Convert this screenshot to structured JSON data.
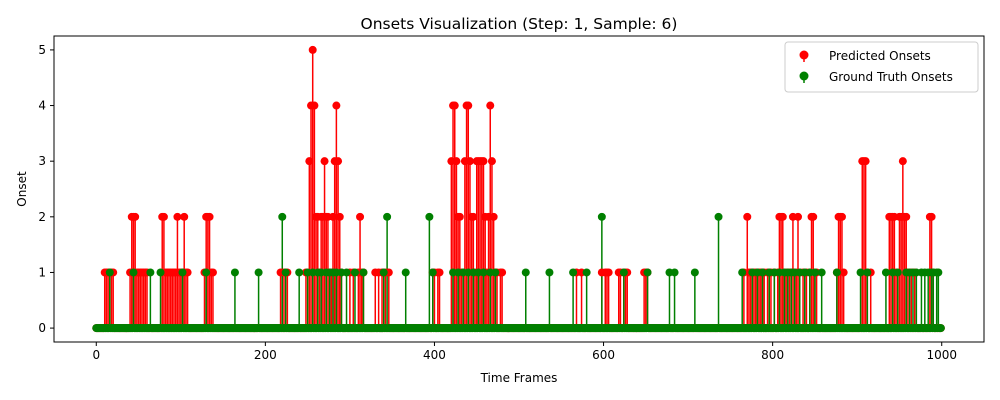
{
  "chart_data": {
    "type": "stem",
    "title": "Onsets Visualization (Step: 1, Sample: 6)",
    "xlabel": "Time Frames",
    "ylabel": "Onset",
    "xlim": [
      -50,
      1050
    ],
    "ylim": [
      -0.25,
      5.25
    ],
    "xticks": [
      0,
      200,
      400,
      600,
      800,
      1000
    ],
    "yticks": [
      0,
      1,
      2,
      3,
      4,
      5
    ],
    "legend_position": "top-right",
    "length": 1000,
    "series": [
      {
        "name": "Predicted Onsets",
        "color": "#ff0000",
        "points": [
          [
            10,
            1
          ],
          [
            12,
            1
          ],
          [
            14,
            1
          ],
          [
            16,
            1
          ],
          [
            18,
            1
          ],
          [
            20,
            1
          ],
          [
            40,
            1
          ],
          [
            42,
            2
          ],
          [
            44,
            2
          ],
          [
            46,
            2
          ],
          [
            48,
            1
          ],
          [
            50,
            1
          ],
          [
            52,
            1
          ],
          [
            54,
            1
          ],
          [
            56,
            1
          ],
          [
            58,
            1
          ],
          [
            60,
            1
          ],
          [
            78,
            2
          ],
          [
            80,
            2
          ],
          [
            82,
            1
          ],
          [
            84,
            1
          ],
          [
            86,
            1
          ],
          [
            88,
            1
          ],
          [
            90,
            1
          ],
          [
            92,
            1
          ],
          [
            94,
            1
          ],
          [
            96,
            2
          ],
          [
            98,
            1
          ],
          [
            100,
            1
          ],
          [
            102,
            1
          ],
          [
            104,
            2
          ],
          [
            106,
            1
          ],
          [
            108,
            1
          ],
          [
            128,
            1
          ],
          [
            130,
            2
          ],
          [
            132,
            2
          ],
          [
            134,
            2
          ],
          [
            136,
            1
          ],
          [
            138,
            1
          ],
          [
            218,
            1
          ],
          [
            222,
            1
          ],
          [
            226,
            1
          ],
          [
            248,
            1
          ],
          [
            252,
            3
          ],
          [
            254,
            4
          ],
          [
            256,
            5
          ],
          [
            258,
            4
          ],
          [
            260,
            2
          ],
          [
            262,
            2
          ],
          [
            264,
            1
          ],
          [
            266,
            2
          ],
          [
            268,
            2
          ],
          [
            270,
            3
          ],
          [
            272,
            2
          ],
          [
            274,
            2
          ],
          [
            276,
            1
          ],
          [
            278,
            1
          ],
          [
            280,
            2
          ],
          [
            282,
            3
          ],
          [
            284,
            4
          ],
          [
            286,
            3
          ],
          [
            288,
            2
          ],
          [
            290,
            1
          ],
          [
            300,
            1
          ],
          [
            304,
            1
          ],
          [
            310,
            1
          ],
          [
            312,
            2
          ],
          [
            314,
            1
          ],
          [
            316,
            1
          ],
          [
            330,
            1
          ],
          [
            334,
            1
          ],
          [
            338,
            1
          ],
          [
            342,
            1
          ],
          [
            346,
            1
          ],
          [
            398,
            1
          ],
          [
            400,
            1
          ],
          [
            404,
            1
          ],
          [
            406,
            1
          ],
          [
            420,
            3
          ],
          [
            422,
            4
          ],
          [
            424,
            4
          ],
          [
            426,
            3
          ],
          [
            428,
            2
          ],
          [
            430,
            2
          ],
          [
            432,
            1
          ],
          [
            434,
            1
          ],
          [
            436,
            3
          ],
          [
            438,
            4
          ],
          [
            440,
            4
          ],
          [
            442,
            3
          ],
          [
            444,
            2
          ],
          [
            446,
            2
          ],
          [
            448,
            1
          ],
          [
            450,
            3
          ],
          [
            452,
            3
          ],
          [
            454,
            3
          ],
          [
            456,
            3
          ],
          [
            458,
            3
          ],
          [
            460,
            2
          ],
          [
            462,
            1
          ],
          [
            464,
            2
          ],
          [
            466,
            4
          ],
          [
            468,
            3
          ],
          [
            470,
            2
          ],
          [
            472,
            1
          ],
          [
            474,
            1
          ],
          [
            478,
            1
          ],
          [
            480,
            1
          ],
          [
            568,
            1
          ],
          [
            574,
            1
          ],
          [
            598,
            1
          ],
          [
            602,
            1
          ],
          [
            604,
            1
          ],
          [
            606,
            1
          ],
          [
            618,
            1
          ],
          [
            620,
            1
          ],
          [
            624,
            1
          ],
          [
            626,
            1
          ],
          [
            628,
            1
          ],
          [
            648,
            1
          ],
          [
            650,
            1
          ],
          [
            652,
            1
          ],
          [
            766,
            1
          ],
          [
            770,
            2
          ],
          [
            772,
            1
          ],
          [
            774,
            1
          ],
          [
            776,
            1
          ],
          [
            778,
            1
          ],
          [
            780,
            1
          ],
          [
            782,
            1
          ],
          [
            784,
            1
          ],
          [
            786,
            1
          ],
          [
            788,
            1
          ],
          [
            790,
            1
          ],
          [
            794,
            1
          ],
          [
            798,
            1
          ],
          [
            802,
            1
          ],
          [
            806,
            1
          ],
          [
            808,
            2
          ],
          [
            810,
            2
          ],
          [
            812,
            2
          ],
          [
            814,
            1
          ],
          [
            816,
            1
          ],
          [
            818,
            1
          ],
          [
            820,
            1
          ],
          [
            822,
            1
          ],
          [
            824,
            2
          ],
          [
            826,
            1
          ],
          [
            828,
            1
          ],
          [
            830,
            2
          ],
          [
            832,
            1
          ],
          [
            836,
            1
          ],
          [
            840,
            1
          ],
          [
            844,
            1
          ],
          [
            846,
            2
          ],
          [
            848,
            2
          ],
          [
            850,
            1
          ],
          [
            852,
            1
          ],
          [
            876,
            1
          ],
          [
            878,
            2
          ],
          [
            880,
            2
          ],
          [
            882,
            2
          ],
          [
            884,
            1
          ],
          [
            906,
            3
          ],
          [
            908,
            3
          ],
          [
            910,
            3
          ],
          [
            912,
            1
          ],
          [
            916,
            1
          ],
          [
            938,
            2
          ],
          [
            940,
            2
          ],
          [
            942,
            2
          ],
          [
            944,
            2
          ],
          [
            946,
            1
          ],
          [
            950,
            2
          ],
          [
            952,
            2
          ],
          [
            954,
            3
          ],
          [
            956,
            2
          ],
          [
            958,
            2
          ],
          [
            960,
            1
          ],
          [
            964,
            1
          ],
          [
            968,
            1
          ],
          [
            986,
            2
          ],
          [
            988,
            2
          ],
          [
            990,
            1
          ]
        ]
      },
      {
        "name": "Ground Truth Onsets",
        "color": "#008000",
        "points": [
          [
            16,
            1
          ],
          [
            44,
            1
          ],
          [
            64,
            1
          ],
          [
            76,
            1
          ],
          [
            102,
            1
          ],
          [
            130,
            1
          ],
          [
            164,
            1
          ],
          [
            192,
            1
          ],
          [
            220,
            2
          ],
          [
            224,
            1
          ],
          [
            240,
            1
          ],
          [
            250,
            1
          ],
          [
            256,
            1
          ],
          [
            262,
            1
          ],
          [
            266,
            1
          ],
          [
            272,
            1
          ],
          [
            276,
            1
          ],
          [
            280,
            1
          ],
          [
            284,
            1
          ],
          [
            290,
            1
          ],
          [
            296,
            1
          ],
          [
            306,
            1
          ],
          [
            316,
            1
          ],
          [
            340,
            1
          ],
          [
            344,
            2
          ],
          [
            366,
            1
          ],
          [
            394,
            2
          ],
          [
            398,
            1
          ],
          [
            422,
            1
          ],
          [
            428,
            1
          ],
          [
            434,
            1
          ],
          [
            440,
            1
          ],
          [
            446,
            1
          ],
          [
            452,
            1
          ],
          [
            458,
            1
          ],
          [
            466,
            1
          ],
          [
            472,
            1
          ],
          [
            508,
            1
          ],
          [
            536,
            1
          ],
          [
            564,
            1
          ],
          [
            580,
            1
          ],
          [
            598,
            2
          ],
          [
            624,
            1
          ],
          [
            652,
            1
          ],
          [
            678,
            1
          ],
          [
            684,
            1
          ],
          [
            708,
            1
          ],
          [
            736,
            2
          ],
          [
            764,
            1
          ],
          [
            776,
            1
          ],
          [
            782,
            1
          ],
          [
            788,
            1
          ],
          [
            796,
            1
          ],
          [
            802,
            1
          ],
          [
            808,
            1
          ],
          [
            814,
            1
          ],
          [
            818,
            1
          ],
          [
            822,
            1
          ],
          [
            826,
            1
          ],
          [
            832,
            1
          ],
          [
            838,
            1
          ],
          [
            844,
            1
          ],
          [
            850,
            1
          ],
          [
            858,
            1
          ],
          [
            876,
            1
          ],
          [
            904,
            1
          ],
          [
            912,
            1
          ],
          [
            934,
            1
          ],
          [
            942,
            1
          ],
          [
            948,
            1
          ],
          [
            958,
            1
          ],
          [
            962,
            1
          ],
          [
            966,
            1
          ],
          [
            970,
            1
          ],
          [
            976,
            1
          ],
          [
            980,
            1
          ],
          [
            984,
            1
          ],
          [
            988,
            1
          ],
          [
            990,
            1
          ],
          [
            994,
            1
          ],
          [
            996,
            1
          ]
        ]
      }
    ]
  }
}
